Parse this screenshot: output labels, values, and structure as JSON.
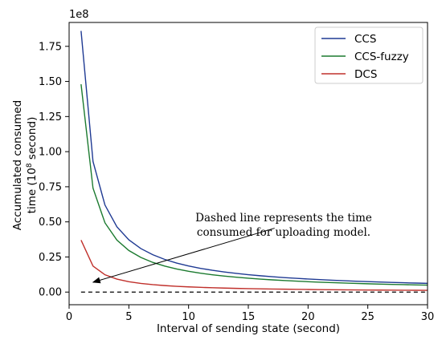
{
  "chart_data": {
    "type": "line",
    "title": "",
    "xlabel": "Interval of sending state (second)",
    "ylabel_line1": "Accumulated consumed",
    "ylabel_line2_prefix": "time (10",
    "ylabel_line2_exp": "8",
    "ylabel_line2_suffix": " second)",
    "y_offset_text": "1e8",
    "xlim": [
      0,
      30
    ],
    "ylim": [
      -0.09,
      1.92
    ],
    "y_scale_factor": 100000000,
    "x_ticks": [
      0,
      5,
      10,
      15,
      20,
      25,
      30
    ],
    "x_tick_labels": [
      "0",
      "5",
      "10",
      "15",
      "20",
      "25",
      "30"
    ],
    "y_ticks": [
      0,
      0.25,
      0.5,
      0.75,
      1.0,
      1.25,
      1.5,
      1.75
    ],
    "y_tick_labels": [
      "0.00",
      "0.25",
      "0.50",
      "0.75",
      "1.00",
      "1.25",
      "1.50",
      "1.75"
    ],
    "grid": false,
    "legend_position": "top-right",
    "x": [
      1,
      2,
      3,
      4,
      5,
      6,
      7,
      8,
      9,
      10,
      11,
      12,
      13,
      14,
      15,
      16,
      17,
      18,
      19,
      20,
      21,
      22,
      23,
      24,
      25,
      26,
      27,
      28,
      29,
      30
    ],
    "series": [
      {
        "name": "CCS",
        "color": "#1f3a93",
        "values": [
          1.86,
          0.93,
          0.62,
          0.465,
          0.372,
          0.31,
          0.266,
          0.2325,
          0.2067,
          0.186,
          0.1691,
          0.155,
          0.1431,
          0.1329,
          0.124,
          0.1163,
          0.1094,
          0.1033,
          0.0979,
          0.093,
          0.0886,
          0.0845,
          0.0809,
          0.0775,
          0.0744,
          0.0715,
          0.0689,
          0.0664,
          0.0641,
          0.062
        ]
      },
      {
        "name": "CCS-fuzzy",
        "color": "#1b7a2f",
        "values": [
          1.48,
          0.74,
          0.4933,
          0.37,
          0.296,
          0.2467,
          0.2114,
          0.185,
          0.1644,
          0.148,
          0.1345,
          0.1233,
          0.1138,
          0.1057,
          0.0987,
          0.0925,
          0.0871,
          0.0822,
          0.0779,
          0.074,
          0.0705,
          0.0673,
          0.0643,
          0.0617,
          0.0592,
          0.0569,
          0.0548,
          0.0529,
          0.051,
          0.0493
        ]
      },
      {
        "name": "DCS",
        "color": "#c0302b",
        "values": [
          0.37,
          0.185,
          0.1233,
          0.0925,
          0.074,
          0.0617,
          0.0529,
          0.0463,
          0.0411,
          0.037,
          0.0336,
          0.0308,
          0.0285,
          0.0264,
          0.0247,
          0.0231,
          0.0218,
          0.0206,
          0.0195,
          0.0185,
          0.0176,
          0.0168,
          0.0161,
          0.0154,
          0.0148,
          0.0142,
          0.0137,
          0.0132,
          0.0128,
          0.0123
        ]
      }
    ],
    "dashed_line": {
      "x": [
        1,
        30
      ],
      "y": [
        0.0,
        0.0
      ],
      "color": "#000000"
    },
    "annotation": {
      "line1": "Dashed line represents the time",
      "line2": "consumed for uploading model.",
      "arrow_from": [
        17.2,
        0.455
      ],
      "arrow_to": [
        2.0,
        0.07
      ]
    }
  }
}
